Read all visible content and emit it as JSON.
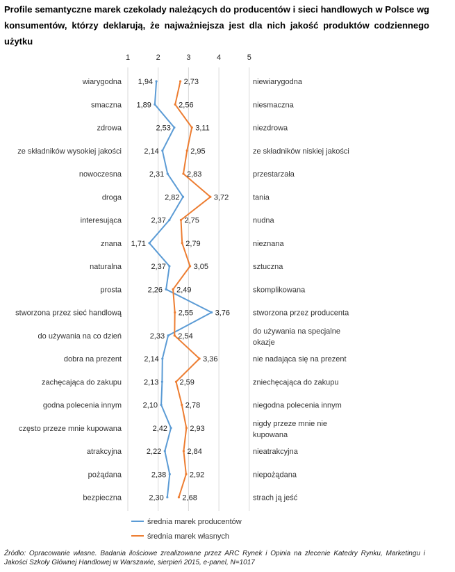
{
  "title": "Profile semantyczne marek czekolady należących do producentów i sieci handlowych w Polsce wg konsumentów, którzy deklarują, że najważniejsza jest dla nich jakość produktów codziennego użytku",
  "source": "Źródło: Opracowanie własne. Badania ilościowe zrealizowane przez ARC Rynek i Opinia na zlecenie Katedry Rynku, Marketingu i Jakości Szkoły Głównej Handlowej w Warszawie, sierpień 2015, e-panel, N=1017",
  "chart_data": {
    "type": "line",
    "orientation": "horizontal-values",
    "xlim": [
      1,
      5
    ],
    "x_ticks": [
      "1",
      "2",
      "3",
      "4",
      "5"
    ],
    "grid": true,
    "legend_position": "bottom",
    "left_labels": [
      "wiarygodna",
      "smaczna",
      "zdrowa",
      "ze składników wysokiej jakości",
      "nowoczesna",
      "droga",
      "interesująca",
      "znana",
      "naturalna",
      "prosta",
      "stworzona przez sieć handlową",
      "do używania na co dzień",
      "dobra na prezent",
      "zachęcająca do zakupu",
      "godna polecenia innym",
      "często przeze mnie kupowana",
      "atrakcyjna",
      "pożądana",
      "bezpieczna"
    ],
    "right_labels": [
      [
        "niewiarygodna"
      ],
      [
        "niesmaczna"
      ],
      [
        "niezdrowa"
      ],
      [
        "ze składników niskiej jakości"
      ],
      [
        "przestarzała"
      ],
      [
        "tania"
      ],
      [
        "nudna"
      ],
      [
        "nieznana"
      ],
      [
        "sztuczna"
      ],
      [
        "skomplikowana"
      ],
      [
        "stworzona przez producenta"
      ],
      [
        "do używania na specjalne",
        "okazje"
      ],
      [
        "nie nadająca się na prezent"
      ],
      [
        "zniechęcająca do zakupu"
      ],
      [
        "niegodna polecenia innym"
      ],
      [
        "nigdy przeze mnie nie",
        "kupowana"
      ],
      [
        "nieatrakcyjna"
      ],
      [
        "niepożądana"
      ],
      [
        "strach ją jeść"
      ]
    ],
    "series": [
      {
        "name": "średnia marek producentów",
        "color": "#5b9bd5",
        "values": [
          1.94,
          1.89,
          2.53,
          2.14,
          2.31,
          2.82,
          2.37,
          1.71,
          2.37,
          2.26,
          3.76,
          2.33,
          2.14,
          2.13,
          2.1,
          2.42,
          2.22,
          2.38,
          2.3
        ],
        "labels": [
          "1,94",
          "1,89",
          "2,53",
          "2,14",
          "2,31",
          "2,82",
          "2,37",
          "1,71",
          "2,37",
          "2,26",
          "3,76",
          "2,33",
          "2,14",
          "2,13",
          "2,10",
          "2,42",
          "2,22",
          "2,38",
          "2,30"
        ]
      },
      {
        "name": "średnia marek własnych",
        "color": "#ed7d31",
        "values": [
          2.73,
          2.56,
          3.11,
          2.95,
          2.83,
          3.72,
          2.75,
          2.79,
          3.05,
          2.49,
          2.55,
          2.54,
          3.36,
          2.59,
          2.78,
          2.93,
          2.84,
          2.92,
          2.68
        ],
        "labels": [
          "2,73",
          "2,56",
          "3,11",
          "2,95",
          "2,83",
          "3,72",
          "2,75",
          "2,79",
          "3,05",
          "2,49",
          "2,55",
          "2,54",
          "3,36",
          "2,59",
          "2,78",
          "2,93",
          "2,84",
          "2,92",
          "2,68"
        ]
      }
    ]
  }
}
